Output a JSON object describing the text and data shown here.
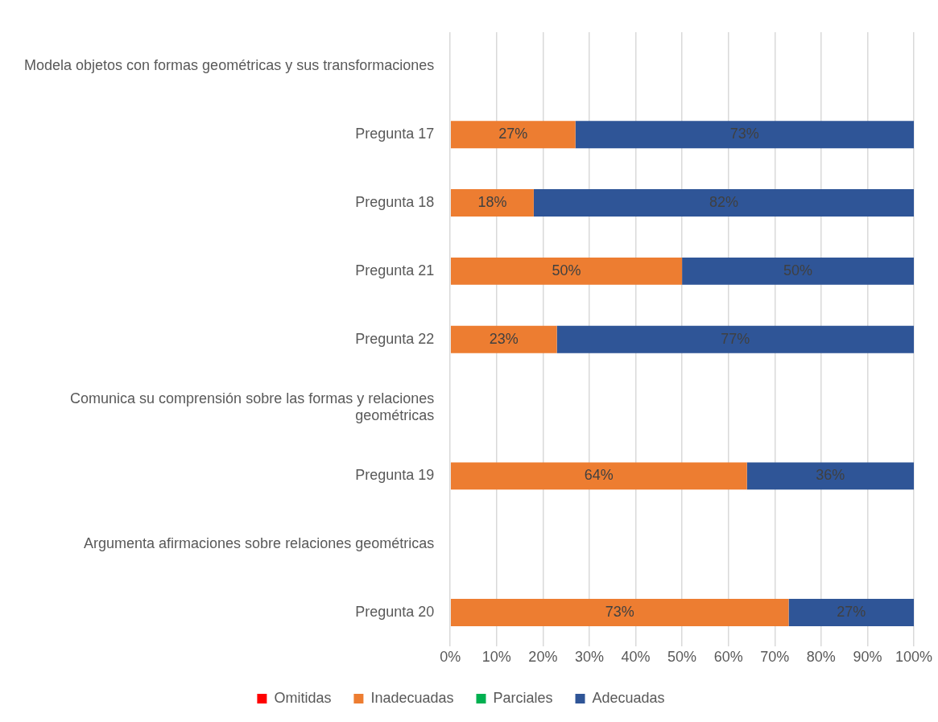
{
  "chart_data": {
    "type": "bar",
    "orientation": "horizontal",
    "stacked": true,
    "categories": [
      "Modela objetos con formas geométricas y sus transformaciones",
      "Pregunta 17",
      "Pregunta 18",
      "Pregunta 21",
      "Pregunta 22",
      "Comunica su comprensión sobre las formas y relaciones geométricas",
      "Pregunta 19",
      "Argumenta afirmaciones sobre relaciones geométricas",
      "Pregunta 20"
    ],
    "series": [
      {
        "name": "Omitidas",
        "color": "#ff0000",
        "values": [
          null,
          null,
          null,
          null,
          null,
          null,
          null,
          null,
          null
        ]
      },
      {
        "name": "Inadecuadas",
        "color": "#ed7d31",
        "values": [
          null,
          27,
          18,
          50,
          23,
          null,
          64,
          null,
          73
        ],
        "value_labels": [
          null,
          "27%",
          "18%",
          "50%",
          "23%",
          null,
          "64%",
          null,
          "73%"
        ]
      },
      {
        "name": "Parciales",
        "color": "#00b050",
        "values": [
          null,
          null,
          null,
          null,
          null,
          null,
          null,
          null,
          null
        ]
      },
      {
        "name": "Adecuadas",
        "color": "#2f5597",
        "values": [
          null,
          73,
          82,
          50,
          77,
          null,
          36,
          null,
          27
        ],
        "value_labels": [
          null,
          "73%",
          "82%",
          "50%",
          "77%",
          null,
          "36%",
          null,
          "27%"
        ]
      }
    ],
    "xlim": [
      0,
      100
    ],
    "xticks": [
      {
        "value": 0,
        "label": "0%"
      },
      {
        "value": 10,
        "label": "10%"
      },
      {
        "value": 20,
        "label": "20%"
      },
      {
        "value": 30,
        "label": "30%"
      },
      {
        "value": 40,
        "label": "40%"
      },
      {
        "value": 50,
        "label": "50%"
      },
      {
        "value": 60,
        "label": "60%"
      },
      {
        "value": 70,
        "label": "70%"
      },
      {
        "value": 80,
        "label": "80%"
      },
      {
        "value": 90,
        "label": "90%"
      },
      {
        "value": 100,
        "label": "100%"
      }
    ],
    "grid": "x",
    "legend": "bottom"
  }
}
